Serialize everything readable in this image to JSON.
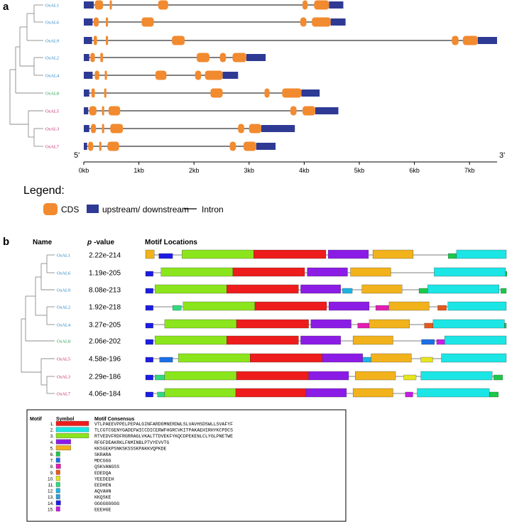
{
  "colors": {
    "cds": "#F28A2F",
    "utr": "#2E3A94",
    "intron": "#000000",
    "tree": "#8C8C8C",
    "label_blue": "#1E7FC3",
    "label_green": "#1E9E4A",
    "label_magenta": "#C21E6A"
  },
  "panel_a": {
    "tag": "a",
    "five_prime": "5'",
    "three_prime": "3'",
    "axis_max_kb": 7.5,
    "ticks": [
      {
        "label": "0kb",
        "kb": 0
      },
      {
        "label": "1kb",
        "kb": 1
      },
      {
        "label": "2kb",
        "kb": 2
      },
      {
        "label": "3kb",
        "kb": 3
      },
      {
        "label": "4kb",
        "kb": 4
      },
      {
        "label": "5kb",
        "kb": 5
      },
      {
        "label": "6kb",
        "kb": 6
      },
      {
        "label": "7kb",
        "kb": 7
      }
    ],
    "genes": [
      {
        "name": "OsAL1",
        "group": "blue",
        "length": 4.71,
        "utrs": [
          [
            0,
            0.18
          ],
          [
            4.45,
            4.71
          ]
        ],
        "cds": [
          [
            0.2,
            0.35
          ],
          [
            0.47,
            0.51
          ],
          [
            1.35,
            1.53
          ],
          [
            3.97,
            4.06
          ],
          [
            4.18,
            4.45
          ]
        ]
      },
      {
        "name": "OsAL6",
        "group": "blue",
        "length": 4.75,
        "utrs": [
          [
            0,
            0.16
          ],
          [
            4.48,
            4.75
          ]
        ],
        "cds": [
          [
            0.18,
            0.27
          ],
          [
            0.4,
            0.44
          ],
          [
            1.05,
            1.27
          ],
          [
            3.93,
            4.04
          ],
          [
            4.14,
            4.48
          ]
        ]
      },
      {
        "name": "OsAL9",
        "group": "blue",
        "length": 7.5,
        "utrs": [
          [
            0,
            0.15
          ],
          [
            7.15,
            7.5
          ]
        ],
        "cds": [
          [
            0.18,
            0.24
          ],
          [
            0.4,
            0.44
          ],
          [
            1.6,
            1.83
          ],
          [
            6.68,
            6.8
          ],
          [
            6.88,
            7.15
          ]
        ]
      },
      {
        "name": "OsAL2",
        "group": "blue",
        "length": 3.3,
        "utrs": [
          [
            0,
            0.1
          ],
          [
            2.95,
            3.3
          ]
        ],
        "cds": [
          [
            0.12,
            0.2
          ],
          [
            0.3,
            0.35
          ],
          [
            2.05,
            2.28
          ],
          [
            2.47,
            2.58
          ],
          [
            2.7,
            2.95
          ]
        ]
      },
      {
        "name": "OsAL4",
        "group": "blue",
        "length": 2.8,
        "utrs": [
          [
            0,
            0.16
          ],
          [
            2.52,
            2.8
          ]
        ],
        "cds": [
          [
            0.2,
            0.28
          ],
          [
            0.38,
            0.42
          ],
          [
            1.3,
            1.5
          ],
          [
            2.02,
            2.13
          ],
          [
            2.2,
            2.52
          ]
        ]
      },
      {
        "name": "OsAL8",
        "group": "green",
        "length": 4.28,
        "utrs": [
          [
            0,
            0.1
          ],
          [
            3.95,
            4.28
          ]
        ],
        "cds": [
          [
            0.14,
            0.2
          ],
          [
            0.37,
            0.41
          ],
          [
            2.3,
            2.52
          ],
          [
            3.28,
            3.37
          ],
          [
            3.6,
            3.95
          ]
        ]
      },
      {
        "name": "OsAL5",
        "group": "magenta",
        "length": 4.62,
        "utrs": [
          [
            0,
            0.08
          ],
          [
            4.2,
            4.62
          ]
        ],
        "cds": [
          [
            0.1,
            0.23
          ],
          [
            0.33,
            0.37
          ],
          [
            0.45,
            0.66
          ],
          [
            3.75,
            3.86
          ],
          [
            3.97,
            4.2
          ]
        ]
      },
      {
        "name": "OsAL3",
        "group": "magenta",
        "length": 3.83,
        "utrs": [
          [
            0,
            0.1
          ],
          [
            3.22,
            3.83
          ]
        ],
        "cds": [
          [
            0.13,
            0.22
          ],
          [
            0.33,
            0.37
          ],
          [
            0.48,
            0.71
          ],
          [
            2.8,
            2.91
          ],
          [
            3.0,
            3.22
          ]
        ]
      },
      {
        "name": "OsAL7",
        "group": "magenta",
        "length": 3.48,
        "utrs": [
          [
            0,
            0.06
          ],
          [
            3.13,
            3.48
          ]
        ],
        "cds": [
          [
            0.08,
            0.17
          ],
          [
            0.28,
            0.32
          ],
          [
            0.43,
            0.64
          ],
          [
            2.65,
            2.76
          ],
          [
            2.9,
            3.13
          ]
        ]
      }
    ],
    "legend": {
      "title": "Legend:",
      "cds_label": "CDS",
      "utr_label": "upstream/ downstream",
      "intron_label": "Intron"
    }
  },
  "panel_b": {
    "tag": "b",
    "header_name": "Name",
    "header_p": "p",
    "header_p_suffix": "-value",
    "header_locations": "Motif Locations",
    "rows": [
      {
        "name": "OsAL1",
        "group": "blue",
        "pvalue": "2.22e-214",
        "end": 1.0,
        "motifs": [
          [
            5,
            0.0,
            0.024
          ],
          [
            14,
            0.037,
            0.075
          ],
          [
            3,
            0.101,
            0.3
          ],
          [
            1,
            0.3,
            0.5
          ],
          [
            4,
            0.506,
            0.618
          ],
          [
            5,
            0.63,
            0.742
          ],
          [
            6,
            0.839,
            0.862
          ],
          [
            2,
            0.862,
            1.0
          ]
        ]
      },
      {
        "name": "OsAL6",
        "group": "blue",
        "pvalue": "1.19e-205",
        "end": 1.0,
        "motifs": [
          [
            14,
            0.0,
            0.021
          ],
          [
            3,
            0.043,
            0.242
          ],
          [
            1,
            0.242,
            0.441
          ],
          [
            4,
            0.448,
            0.56
          ],
          [
            5,
            0.568,
            0.68
          ],
          [
            2,
            0.8,
            0.998
          ],
          [
            6,
            0.998,
            1.0
          ]
        ]
      },
      {
        "name": "OsAL9",
        "group": "blue",
        "pvalue": "8.08e-213",
        "end": 1.0,
        "motifs": [
          [
            14,
            0.0,
            0.021
          ],
          [
            3,
            0.026,
            0.225
          ],
          [
            1,
            0.225,
            0.424
          ],
          [
            4,
            0.43,
            0.541
          ],
          [
            12,
            0.546,
            0.573
          ],
          [
            5,
            0.6,
            0.711
          ],
          [
            6,
            0.758,
            0.782
          ],
          [
            2,
            0.782,
            0.98
          ],
          [
            6,
            0.985,
            1.0
          ]
        ]
      },
      {
        "name": "OsAL2",
        "group": "blue",
        "pvalue": "1.92e-218",
        "end": 1.0,
        "motifs": [
          [
            14,
            0.0,
            0.021
          ],
          [
            11,
            0.075,
            0.099
          ],
          [
            3,
            0.104,
            0.303
          ],
          [
            1,
            0.303,
            0.502
          ],
          [
            4,
            0.508,
            0.62
          ],
          [
            8,
            0.638,
            0.674
          ],
          [
            5,
            0.675,
            0.786
          ],
          [
            9,
            0.81,
            0.834
          ],
          [
            2,
            0.838,
            1.0
          ]
        ]
      },
      {
        "name": "OsAL4",
        "group": "blue",
        "pvalue": "3.27e-205",
        "end": 1.0,
        "motifs": [
          [
            14,
            0.0,
            0.021
          ],
          [
            3,
            0.053,
            0.252
          ],
          [
            1,
            0.252,
            0.452
          ],
          [
            4,
            0.458,
            0.57
          ],
          [
            8,
            0.588,
            0.62
          ],
          [
            5,
            0.62,
            0.732
          ],
          [
            9,
            0.773,
            0.797
          ],
          [
            2,
            0.797,
            0.995
          ],
          [
            6,
            0.995,
            1.0
          ]
        ]
      },
      {
        "name": "OsAL8",
        "group": "green",
        "pvalue": "2.06e-202",
        "end": 1.0,
        "motifs": [
          [
            14,
            0.0,
            0.021
          ],
          [
            3,
            0.026,
            0.225
          ],
          [
            1,
            0.225,
            0.424
          ],
          [
            4,
            0.43,
            0.541
          ],
          [
            5,
            0.575,
            0.686
          ],
          [
            7,
            0.765,
            0.801
          ],
          [
            15,
            0.807,
            0.829
          ],
          [
            2,
            0.829,
            1.0
          ]
        ]
      },
      {
        "name": "OsAL5",
        "group": "magenta",
        "pvalue": "4.58e-196",
        "end": 1.0,
        "motifs": [
          [
            14,
            0.0,
            0.021
          ],
          [
            7,
            0.039,
            0.075
          ],
          [
            3,
            0.091,
            0.29
          ],
          [
            1,
            0.29,
            0.49
          ],
          [
            4,
            0.49,
            0.602
          ],
          [
            12,
            0.602,
            0.625
          ],
          [
            5,
            0.625,
            0.737
          ],
          [
            10,
            0.763,
            0.796
          ],
          [
            2,
            0.82,
            1.0
          ]
        ]
      },
      {
        "name": "OsAL3",
        "group": "magenta",
        "pvalue": "2.29e-186",
        "end": 0.97,
        "motifs": [
          [
            14,
            0.0,
            0.021
          ],
          [
            11,
            0.026,
            0.053
          ],
          [
            3,
            0.053,
            0.252
          ],
          [
            1,
            0.252,
            0.452
          ],
          [
            4,
            0.452,
            0.563
          ],
          [
            5,
            0.581,
            0.693
          ],
          [
            10,
            0.716,
            0.75
          ],
          [
            2,
            0.763,
            0.961
          ],
          [
            6,
            0.965,
            0.99
          ]
        ]
      },
      {
        "name": "OsAL7",
        "group": "magenta",
        "pvalue": "4.06e-184",
        "end": 0.96,
        "motifs": [
          [
            14,
            0.0,
            0.021
          ],
          [
            11,
            0.033,
            0.053
          ],
          [
            3,
            0.053,
            0.25
          ],
          [
            1,
            0.25,
            0.445
          ],
          [
            4,
            0.445,
            0.557
          ],
          [
            5,
            0.575,
            0.686
          ],
          [
            15,
            0.72,
            0.741
          ],
          [
            2,
            0.753,
            0.953
          ],
          [
            6,
            0.953,
            0.978
          ]
        ]
      }
    ]
  },
  "motif_table": {
    "col_motif": "Motif",
    "col_symbol": "Symbol",
    "col_consensus": "Motif Consensus",
    "rows": [
      {
        "num": "1.",
        "color": "#EE1C1C",
        "scale": 1.0,
        "consensus": "VTLPAEEVPPELPEPALGINFARDGMNERDWLSLVAVHSDSWLLSVAFYF"
      },
      {
        "num": "2.",
        "color": "#1CE5E5",
        "scale": 1.0,
        "consensus": "TLCGTCGENYGADEFWICCDICERWFHGRCVKITPAKAEHIRHYKCPDCS"
      },
      {
        "num": "3.",
        "color": "#8BE51C",
        "scale": 1.0,
        "consensus": "RTVEDVFRDFRGRRAGLVKALTTDVEKFYKQCDPEKENLCLYGLPNETWE"
      },
      {
        "num": "4.",
        "color": "#8B1CE5",
        "scale": 0.45,
        "consensus": "RFGFDEAKRKLFNMINBLPTVYEVVTG"
      },
      {
        "num": "5.",
        "color": "#F2B21C",
        "scale": 0.45,
        "consensus": "KKSGEKPSNKSKSSSKPAKKVQPKDE"
      },
      {
        "num": "6.",
        "color": "#1CC84B",
        "scale": 0.12,
        "consensus": "SKRARA"
      },
      {
        "num": "7.",
        "color": "#1C6FE5",
        "scale": 0.12,
        "consensus": "MDCGGG"
      },
      {
        "num": "8.",
        "color": "#E51CB3",
        "scale": 0.14,
        "consensus": "QSKVANGSS"
      },
      {
        "num": "9.",
        "color": "#E55A1C",
        "scale": 0.12,
        "consensus": "EDEDQA"
      },
      {
        "num": "10.",
        "color": "#E5E51C",
        "scale": 0.12,
        "consensus": "YEEDEEH"
      },
      {
        "num": "11.",
        "color": "#33D980",
        "scale": 0.12,
        "consensus": "EEDHEN"
      },
      {
        "num": "12.",
        "color": "#1CB3E5",
        "scale": 0.12,
        "consensus": "AQVAHN"
      },
      {
        "num": "13.",
        "color": "#2E9ED9",
        "scale": 0.12,
        "consensus": "KKQSKE"
      },
      {
        "num": "14.",
        "color": "#1C1CE5",
        "scale": 0.14,
        "consensus": "GGGGGGGGG"
      },
      {
        "num": "15.",
        "color": "#C81CE5",
        "scale": 0.12,
        "consensus": "EEEHGE"
      }
    ]
  }
}
